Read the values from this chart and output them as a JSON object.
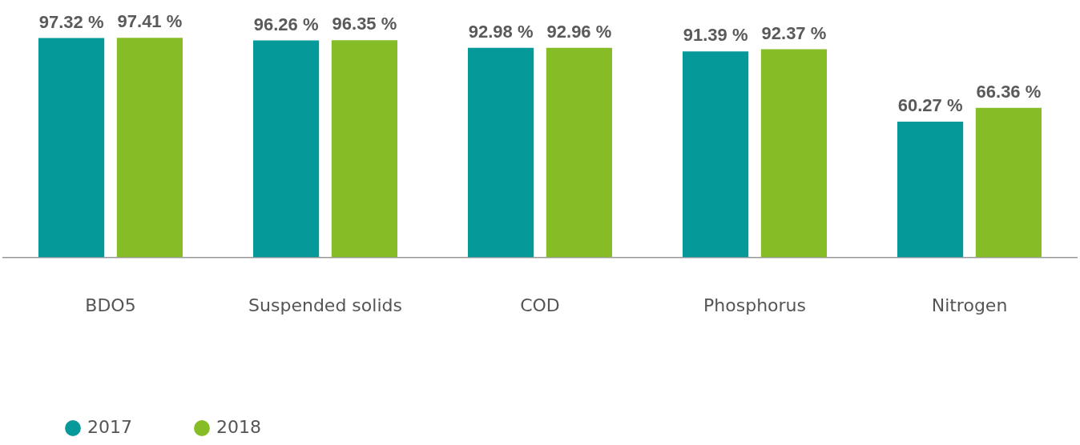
{
  "chart_data": {
    "type": "bar",
    "categories": [
      "BDO5",
      "Suspended solids",
      "COD",
      "Phosphorus",
      "Nitrogen"
    ],
    "series": [
      {
        "name": "2017",
        "color": "#06999a",
        "values": [
          97.32,
          96.26,
          92.98,
          91.39,
          60.27
        ],
        "value_labels": [
          "97.32 %",
          "96.26 %",
          "92.98 %",
          "91.39 %",
          "60.27 %"
        ]
      },
      {
        "name": "2018",
        "color": "#86bc25",
        "values": [
          97.41,
          96.35,
          92.96,
          92.37,
          66.36
        ],
        "value_labels": [
          "97.41 %",
          "96.35 %",
          "92.96 %",
          "92.37 %",
          "66.36 %"
        ]
      }
    ],
    "tick_labels": "x",
    "grid": false,
    "legend": "bottom left"
  }
}
